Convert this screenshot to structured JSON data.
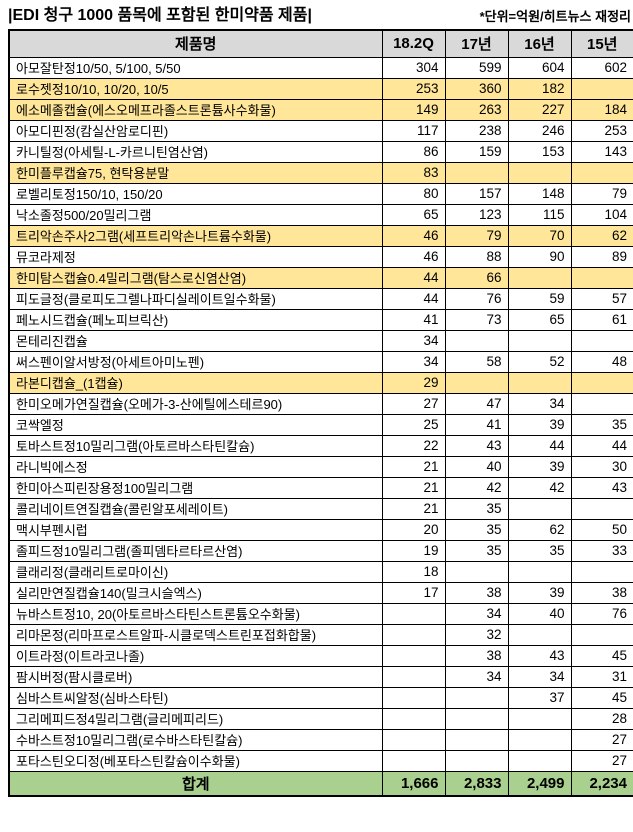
{
  "title": "|EDI 청구 1000 품목에 포함된 한미약품 제품|",
  "unit_note": "*단위=억원/히트뉴스 재정리",
  "colors": {
    "highlight_row_bg": "#ffe699",
    "total_row_bg": "#a9d08e",
    "header_bg": "#d9d9d9",
    "border": "#000000"
  },
  "chart_data": {
    "type": "table",
    "title": "|EDI 청구 1000 품목에 포함된 한미약품 제품|",
    "unit": "억원",
    "source_note": "*단위=억원/히트뉴스 재정리",
    "columns": [
      "제품명",
      "18.2Q",
      "17년",
      "16년",
      "15년"
    ],
    "rows": [
      {
        "name": "아모잘탄정10/50, 5/100, 5/50",
        "values": [
          304,
          599,
          604,
          602
        ],
        "highlight": false
      },
      {
        "name": "로수젯정10/10, 10/20, 10/5",
        "values": [
          253,
          360,
          182,
          null
        ],
        "highlight": true
      },
      {
        "name": "에소메졸캡슐(에스오메프라졸스트론튬사수화물)",
        "values": [
          149,
          263,
          227,
          184
        ],
        "highlight": true
      },
      {
        "name": "아모디핀정(캄실산암로디핀)",
        "values": [
          117,
          238,
          246,
          253
        ],
        "highlight": false
      },
      {
        "name": "카니틸정(아세틸-L-카르니틴염산염)",
        "values": [
          86,
          159,
          153,
          143
        ],
        "highlight": false
      },
      {
        "name": "한미플루캡슐75, 현탁용분말",
        "values": [
          83,
          null,
          null,
          null
        ],
        "highlight": true
      },
      {
        "name": "로벨리토정150/10, 150/20",
        "values": [
          80,
          157,
          148,
          79
        ],
        "highlight": false
      },
      {
        "name": "낙소졸정500/20밀리그램",
        "values": [
          65,
          123,
          115,
          104
        ],
        "highlight": false
      },
      {
        "name": "트리악손주사2그램(세프트리악손나트륨수화물)",
        "values": [
          46,
          79,
          70,
          62
        ],
        "highlight": true
      },
      {
        "name": "뮤코라제정",
        "values": [
          46,
          88,
          90,
          89
        ],
        "highlight": false
      },
      {
        "name": "한미탐스캡슐0.4밀리그램(탐스로신염산염)",
        "values": [
          44,
          66,
          null,
          null
        ],
        "highlight": true
      },
      {
        "name": "피도글정(클로피도그렐나파디실레이트일수화물)",
        "values": [
          44,
          76,
          59,
          57
        ],
        "highlight": false
      },
      {
        "name": "페노시드캡슐(페노피브릭산)",
        "values": [
          41,
          73,
          65,
          61
        ],
        "highlight": false
      },
      {
        "name": "몬테리진캡슐",
        "values": [
          34,
          null,
          null,
          null
        ],
        "highlight": false
      },
      {
        "name": "써스펜이알서방정(아세트아미노펜)",
        "values": [
          34,
          58,
          52,
          48
        ],
        "highlight": false
      },
      {
        "name": "라본디캡슐_(1캡슐)",
        "values": [
          29,
          null,
          null,
          null
        ],
        "highlight": true
      },
      {
        "name": "한미오메가연질캡슐(오메가-3-산에틸에스테르90)",
        "values": [
          27,
          47,
          34,
          null
        ],
        "highlight": false
      },
      {
        "name": "코싹엘정",
        "values": [
          25,
          41,
          39,
          35
        ],
        "highlight": false
      },
      {
        "name": "토바스트정10밀리그램(아토르바스타틴칼슘)",
        "values": [
          22,
          43,
          44,
          44
        ],
        "highlight": false
      },
      {
        "name": "라니빅에스정",
        "values": [
          21,
          40,
          39,
          30
        ],
        "highlight": false
      },
      {
        "name": "한미아스피린장용정100밀리그램",
        "values": [
          21,
          42,
          42,
          43
        ],
        "highlight": false
      },
      {
        "name": "콜리네이트연질캡슐(콜린알포세레이트)",
        "values": [
          21,
          35,
          null,
          null
        ],
        "highlight": false
      },
      {
        "name": "맥시부펜시럽",
        "values": [
          20,
          35,
          62,
          50
        ],
        "highlight": false
      },
      {
        "name": "졸피드정10밀리그램(졸피뎀타르타르산염)",
        "values": [
          19,
          35,
          35,
          33
        ],
        "highlight": false
      },
      {
        "name": "클래리정(클래리트로마이신)",
        "values": [
          18,
          null,
          null,
          null
        ],
        "highlight": false
      },
      {
        "name": "실리만연질캡슐140(밀크시슬엑스)",
        "values": [
          17,
          38,
          39,
          38
        ],
        "highlight": false
      },
      {
        "name": "뉴바스트정10, 20(아토르바스타틴스트론튬오수화물)",
        "values": [
          null,
          34,
          40,
          76
        ],
        "highlight": false
      },
      {
        "name": "리마몬정(리마프로스트알파-시클로덱스트린포접화합물)",
        "values": [
          null,
          32,
          null,
          null
        ],
        "highlight": false
      },
      {
        "name": "이트라정(이트라코나졸)",
        "values": [
          null,
          38,
          43,
          45
        ],
        "highlight": false
      },
      {
        "name": "팜시버정(팜시클로버)",
        "values": [
          null,
          34,
          34,
          31
        ],
        "highlight": false
      },
      {
        "name": "심바스트씨알정(심바스타틴)",
        "values": [
          null,
          null,
          37,
          45
        ],
        "highlight": false
      },
      {
        "name": "그리메피드정4밀리그램(글리메피리드)",
        "values": [
          null,
          null,
          null,
          28
        ],
        "highlight": false
      },
      {
        "name": "수바스트정10밀리그램(로수바스타틴칼슘)",
        "values": [
          null,
          null,
          null,
          27
        ],
        "highlight": false
      },
      {
        "name": "포타스틴오디정(베포타스틴칼슘이수화물)",
        "values": [
          null,
          null,
          null,
          27
        ],
        "highlight": false
      }
    ],
    "total": {
      "label": "합계",
      "values": [
        1666,
        2833,
        2499,
        2234
      ]
    }
  }
}
